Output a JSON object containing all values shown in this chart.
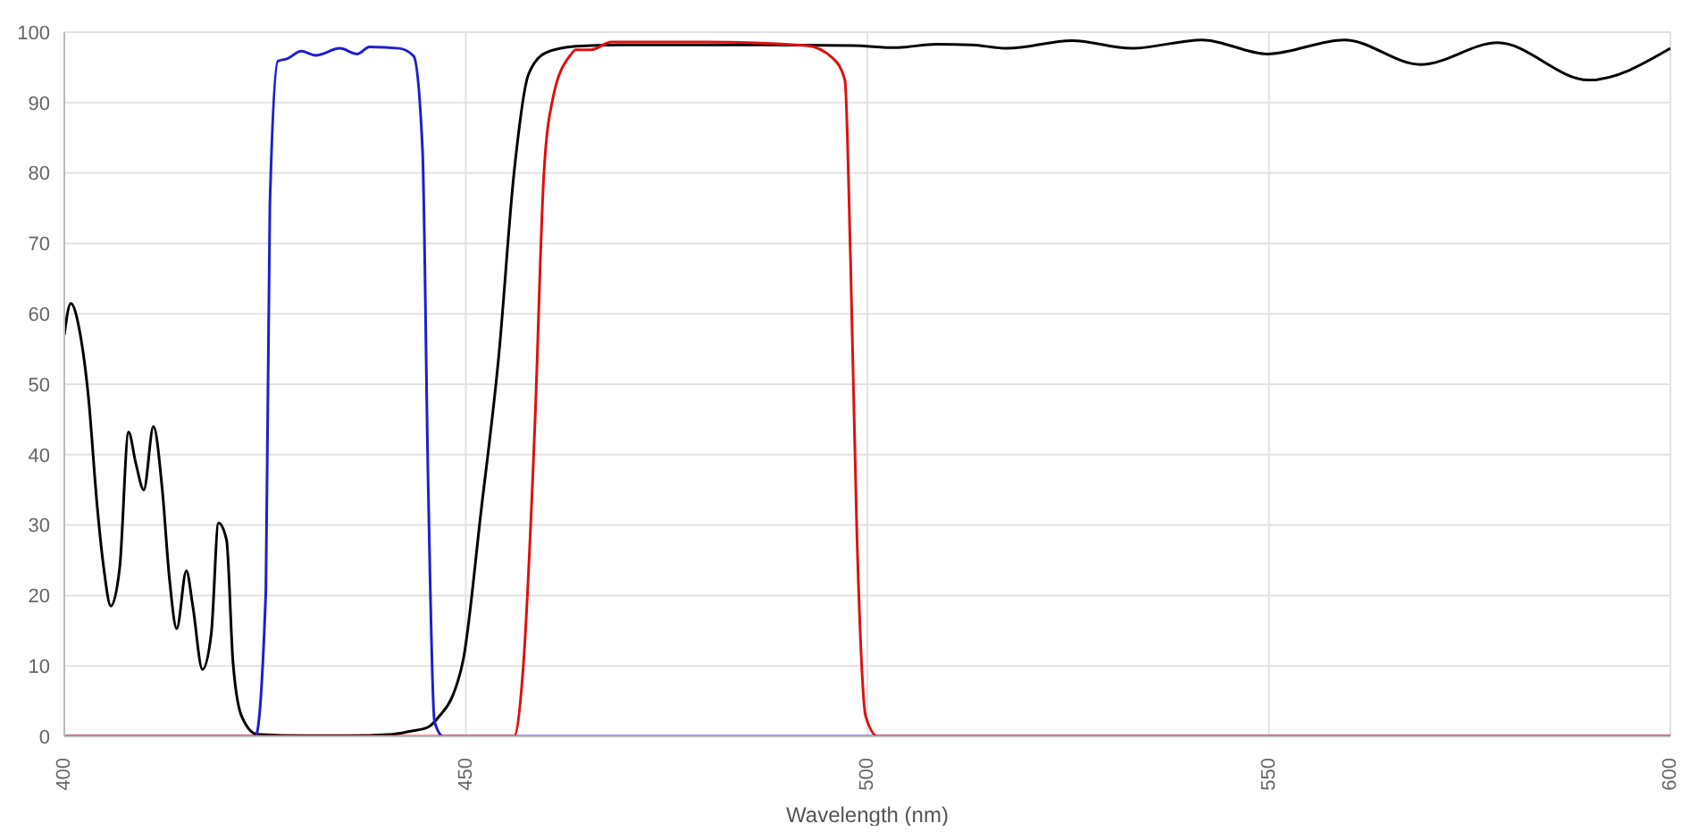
{
  "chart_data": {
    "type": "line",
    "xlabel": "Wavelength (nm)",
    "xlim": [
      400,
      600
    ],
    "xticks": [
      400,
      450,
      500,
      550,
      600
    ],
    "ylim": [
      0,
      100
    ],
    "yticks": [
      0,
      10,
      20,
      30,
      40,
      50,
      60,
      70,
      80,
      90,
      100
    ],
    "grid": true,
    "marker": "none",
    "line_style": "solid",
    "series": [
      {
        "color": "#000000",
        "x": [
          400,
          400.8,
          401.9,
          403,
          404.1,
          404.9,
          405.8,
          406.9,
          408,
          408.9,
          409.9,
          411.1,
          412.2,
          413.1,
          414,
          415.2,
          416,
          417.2,
          418.3,
          419.2,
          420.2,
          421,
          422.1,
          424,
          430,
          435,
          440.9,
          443,
          445.3,
          446.8,
          448.3,
          449.7,
          451.9,
          454.1,
          456,
          457.8,
          460,
          463.7,
          468.9,
          483.6,
          498.2,
          503.5,
          508.6,
          513,
          517.4,
          525.5,
          532.9,
          541.7,
          549.8,
          559.4,
          568.9,
          578.5,
          589.8,
          600
        ],
        "values": [
          57,
          61.5,
          57.6,
          48.2,
          32.6,
          24,
          18.5,
          24,
          43.2,
          38.8,
          35,
          44,
          35,
          22.3,
          15.3,
          23.5,
          18.5,
          9.5,
          14.6,
          30.3,
          27.9,
          10.6,
          2.8,
          0.3,
          0.1,
          0.1,
          0.3,
          0.7,
          1.3,
          3,
          5.6,
          11,
          32,
          54,
          80,
          94,
          97.1,
          98,
          98.2,
          98.2,
          98.1,
          97.8,
          98.3,
          98.2,
          97.7,
          98.8,
          97.7,
          98.9,
          96.9,
          98.9,
          95.4,
          98.5,
          93.2,
          97.7
        ]
      },
      {
        "color": "#1f1fcc",
        "x": [
          400,
          423.8,
          425.1,
          425.6,
          426.6,
          427.7,
          429.5,
          431.3,
          434.3,
          436.5,
          438,
          441.7,
          443.5,
          444.6,
          445.3,
          446.1,
          447.2,
          600
        ],
        "values": [
          0,
          0,
          20.8,
          75.6,
          95.9,
          96.2,
          97.3,
          96.7,
          97.7,
          96.9,
          97.9,
          97.7,
          96.6,
          83.4,
          36.4,
          2.1,
          0,
          0
        ]
      },
      {
        "color": "#dd1111",
        "x": [
          400,
          456,
          457.1,
          458.6,
          459.7,
          460.8,
          463,
          463.7,
          465.6,
          468.1,
          479.9,
          492.4,
          495.7,
          497.2,
          497.9,
          498.7,
          499.8,
          501.3,
          600
        ],
        "values": [
          0,
          0,
          9.1,
          44.3,
          79.5,
          90.4,
          96.7,
          97.5,
          97.5,
          98.6,
          98.6,
          98.1,
          96.3,
          93.2,
          67.8,
          28.6,
          2.8,
          0,
          0
        ]
      }
    ]
  }
}
